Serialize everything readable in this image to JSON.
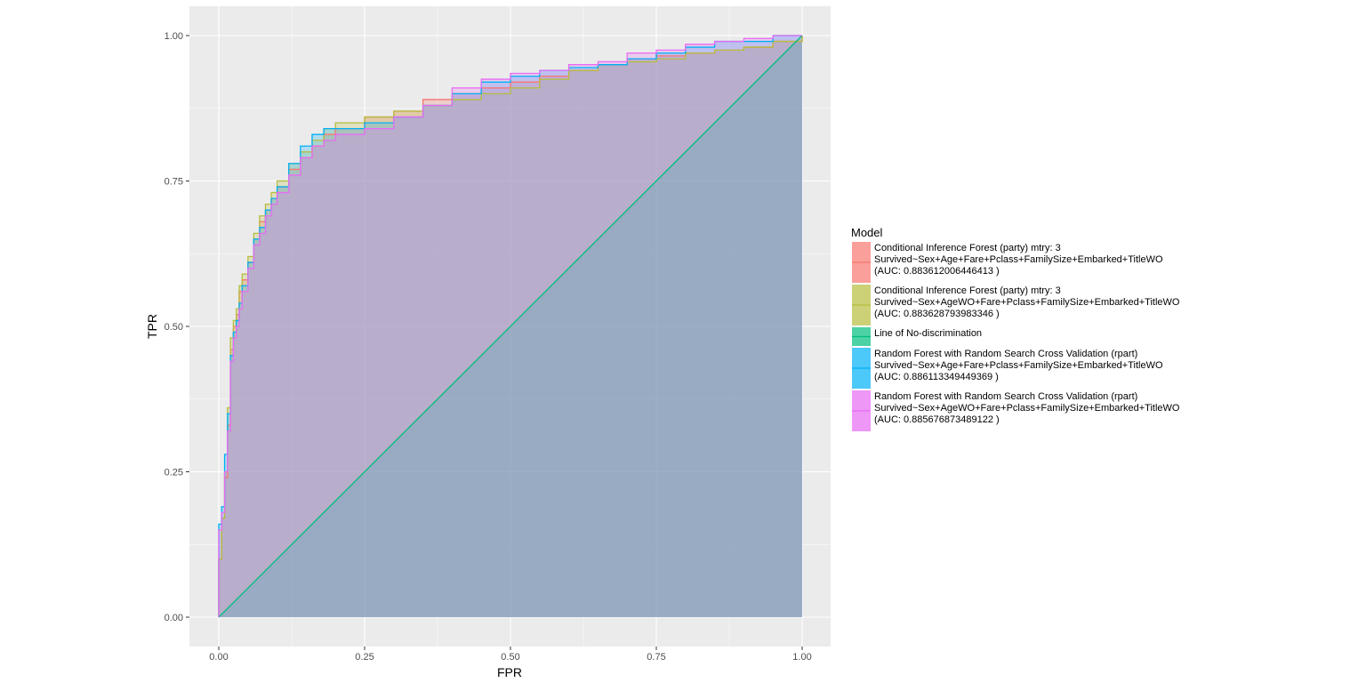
{
  "chart_data": {
    "type": "area",
    "xlabel": "FPR",
    "ylabel": "TPR",
    "xlim": [
      0,
      1
    ],
    "ylim": [
      0,
      1
    ],
    "x_ticks": [
      "0.00",
      "0.25",
      "0.50",
      "0.75",
      "1.00"
    ],
    "y_ticks": [
      "0.00",
      "0.25",
      "0.50",
      "0.75",
      "1.00"
    ],
    "grid": true,
    "legend": {
      "title": "Model",
      "placement": "right",
      "entries": [
        {
          "lines": [
            "Conditional Inference Forest (party) mtry:  3",
            "Survived~Sex+Age+Fare+Pclass+FamilySize+Embarked+TitleWO",
            "(AUC:  0.883612006446413 )"
          ]
        },
        {
          "lines": [
            "Conditional Inference Forest (party) mtry:  3",
            "Survived~Sex+AgeWO+Fare+Pclass+FamilySize+Embarked+TitleWO",
            "(AUC:  0.883628793983346 )"
          ]
        },
        {
          "lines": [
            "Line of No-discrimination"
          ]
        },
        {
          "lines": [
            "Random Forest with Random Search Cross Validation (rpart)",
            "Survived~Sex+Age+Fare+Pclass+FamilySize+Embarked+TitleWO",
            "(AUC:  0.886113349449369 )"
          ]
        },
        {
          "lines": [
            "Random Forest with Random Search Cross Validation (rpart)",
            "Survived~Sex+AgeWO+Fare+Pclass+FamilySize+Embarked+TitleWO",
            "(AUC:  0.885676873489122 )"
          ]
        }
      ]
    },
    "series": [
      {
        "color": "#F8766D",
        "points": [
          [
            0,
            0
          ],
          [
            0,
            0.1
          ],
          [
            0.005,
            0.17
          ],
          [
            0.01,
            0.24
          ],
          [
            0.015,
            0.33
          ],
          [
            0.02,
            0.46
          ],
          [
            0.025,
            0.5
          ],
          [
            0.03,
            0.52
          ],
          [
            0.035,
            0.56
          ],
          [
            0.04,
            0.58
          ],
          [
            0.05,
            0.61
          ],
          [
            0.06,
            0.65
          ],
          [
            0.07,
            0.68
          ],
          [
            0.08,
            0.7
          ],
          [
            0.09,
            0.72
          ],
          [
            0.1,
            0.74
          ],
          [
            0.12,
            0.77
          ],
          [
            0.14,
            0.79
          ],
          [
            0.16,
            0.81
          ],
          [
            0.18,
            0.83
          ],
          [
            0.2,
            0.84
          ],
          [
            0.25,
            0.86
          ],
          [
            0.3,
            0.87
          ],
          [
            0.35,
            0.89
          ],
          [
            0.4,
            0.9
          ],
          [
            0.45,
            0.91
          ],
          [
            0.5,
            0.92
          ],
          [
            0.55,
            0.93
          ],
          [
            0.6,
            0.94
          ],
          [
            0.65,
            0.95
          ],
          [
            0.7,
            0.96
          ],
          [
            0.75,
            0.965
          ],
          [
            0.8,
            0.97
          ],
          [
            0.85,
            0.975
          ],
          [
            0.9,
            0.98
          ],
          [
            0.95,
            0.99
          ],
          [
            1,
            1
          ]
        ]
      },
      {
        "color": "#B6BE3E",
        "points": [
          [
            0,
            0
          ],
          [
            0,
            0.1
          ],
          [
            0.005,
            0.17
          ],
          [
            0.01,
            0.25
          ],
          [
            0.015,
            0.36
          ],
          [
            0.02,
            0.48
          ],
          [
            0.025,
            0.51
          ],
          [
            0.03,
            0.53
          ],
          [
            0.035,
            0.57
          ],
          [
            0.04,
            0.59
          ],
          [
            0.05,
            0.62
          ],
          [
            0.06,
            0.66
          ],
          [
            0.07,
            0.69
          ],
          [
            0.08,
            0.71
          ],
          [
            0.09,
            0.73
          ],
          [
            0.1,
            0.75
          ],
          [
            0.12,
            0.78
          ],
          [
            0.14,
            0.8
          ],
          [
            0.16,
            0.82
          ],
          [
            0.18,
            0.84
          ],
          [
            0.2,
            0.85
          ],
          [
            0.25,
            0.86
          ],
          [
            0.3,
            0.87
          ],
          [
            0.35,
            0.88
          ],
          [
            0.4,
            0.89
          ],
          [
            0.45,
            0.9
          ],
          [
            0.5,
            0.91
          ],
          [
            0.55,
            0.925
          ],
          [
            0.6,
            0.94
          ],
          [
            0.65,
            0.95
          ],
          [
            0.7,
            0.955
          ],
          [
            0.75,
            0.96
          ],
          [
            0.8,
            0.97
          ],
          [
            0.85,
            0.975
          ],
          [
            0.9,
            0.98
          ],
          [
            0.95,
            0.99
          ],
          [
            1,
            1
          ]
        ]
      },
      {
        "color": "#00BF7D",
        "points": [
          [
            0,
            0
          ],
          [
            1,
            1
          ]
        ]
      },
      {
        "color": "#00B0F6",
        "points": [
          [
            0,
            0
          ],
          [
            0,
            0.16
          ],
          [
            0.005,
            0.19
          ],
          [
            0.01,
            0.28
          ],
          [
            0.015,
            0.35
          ],
          [
            0.02,
            0.45
          ],
          [
            0.025,
            0.49
          ],
          [
            0.03,
            0.51
          ],
          [
            0.035,
            0.54
          ],
          [
            0.04,
            0.57
          ],
          [
            0.05,
            0.61
          ],
          [
            0.06,
            0.65
          ],
          [
            0.07,
            0.67
          ],
          [
            0.08,
            0.7
          ],
          [
            0.09,
            0.72
          ],
          [
            0.1,
            0.74
          ],
          [
            0.12,
            0.78
          ],
          [
            0.14,
            0.81
          ],
          [
            0.16,
            0.83
          ],
          [
            0.18,
            0.84
          ],
          [
            0.2,
            0.84
          ],
          [
            0.25,
            0.85
          ],
          [
            0.3,
            0.86
          ],
          [
            0.35,
            0.88
          ],
          [
            0.4,
            0.9
          ],
          [
            0.45,
            0.92
          ],
          [
            0.5,
            0.93
          ],
          [
            0.55,
            0.94
          ],
          [
            0.6,
            0.945
          ],
          [
            0.65,
            0.95
          ],
          [
            0.7,
            0.96
          ],
          [
            0.75,
            0.97
          ],
          [
            0.8,
            0.98
          ],
          [
            0.85,
            0.99
          ],
          [
            0.9,
            0.99
          ],
          [
            0.95,
            1.0
          ],
          [
            1,
            1
          ]
        ]
      },
      {
        "color": "#E76BF3",
        "points": [
          [
            0,
            0
          ],
          [
            0,
            0.15
          ],
          [
            0.005,
            0.18
          ],
          [
            0.01,
            0.25
          ],
          [
            0.015,
            0.32
          ],
          [
            0.02,
            0.44
          ],
          [
            0.025,
            0.48
          ],
          [
            0.03,
            0.5
          ],
          [
            0.035,
            0.53
          ],
          [
            0.04,
            0.56
          ],
          [
            0.05,
            0.6
          ],
          [
            0.06,
            0.64
          ],
          [
            0.07,
            0.66
          ],
          [
            0.08,
            0.69
          ],
          [
            0.09,
            0.71
          ],
          [
            0.1,
            0.73
          ],
          [
            0.12,
            0.76
          ],
          [
            0.14,
            0.79
          ],
          [
            0.16,
            0.81
          ],
          [
            0.18,
            0.82
          ],
          [
            0.2,
            0.83
          ],
          [
            0.25,
            0.84
          ],
          [
            0.3,
            0.86
          ],
          [
            0.35,
            0.88
          ],
          [
            0.4,
            0.91
          ],
          [
            0.45,
            0.925
          ],
          [
            0.5,
            0.935
          ],
          [
            0.55,
            0.94
          ],
          [
            0.6,
            0.95
          ],
          [
            0.65,
            0.955
          ],
          [
            0.7,
            0.97
          ],
          [
            0.75,
            0.975
          ],
          [
            0.8,
            0.985
          ],
          [
            0.85,
            0.99
          ],
          [
            0.9,
            0.995
          ],
          [
            0.95,
            1.0
          ],
          [
            1,
            1
          ]
        ]
      }
    ]
  }
}
